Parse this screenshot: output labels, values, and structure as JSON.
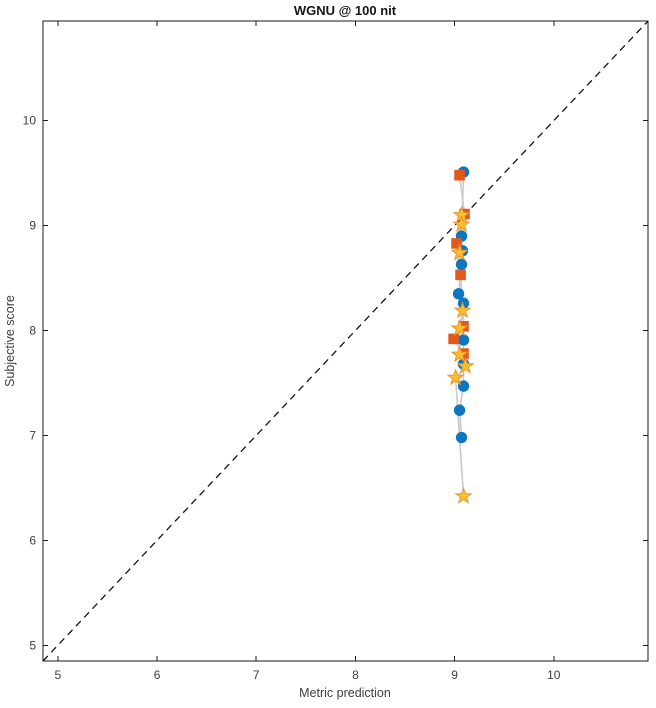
{
  "figure": {
    "title": "WGNU @ 100 nit",
    "xlabel": "Metric prediction",
    "ylabel": "Subjective score"
  },
  "chart_data": {
    "type": "scatter",
    "title": "WGNU @ 100 nit",
    "xlabel": "Metric prediction",
    "ylabel": "Subjective score",
    "xlim": [
      4.85,
      10.95
    ],
    "ylim": [
      4.85,
      10.95
    ],
    "xticks": [
      5,
      6,
      7,
      8,
      9,
      10
    ],
    "yticks": [
      5,
      6,
      7,
      8,
      9,
      10
    ],
    "grid": false,
    "legend": null,
    "background": "#ffffff",
    "axis_color": "#1a1a1a",
    "tick_label_color": "#3d3d3d",
    "identity_line": {
      "from": [
        4.85,
        4.85
      ],
      "to": [
        10.95,
        10.95
      ],
      "style": "dashed",
      "color": "#141414"
    },
    "connector_color": "#c9c9c9",
    "series": [
      {
        "name": "blue-circles",
        "marker": "circle",
        "color": "#0e76be",
        "edge_color": "#0e76be",
        "points": [
          [
            9.09,
            9.51
          ],
          [
            9.07,
            8.9
          ],
          [
            9.08,
            8.76
          ],
          [
            9.07,
            8.63
          ],
          [
            9.04,
            8.35
          ],
          [
            9.09,
            8.26
          ],
          [
            9.09,
            7.91
          ],
          [
            9.09,
            7.68
          ],
          [
            9.09,
            7.47
          ],
          [
            9.05,
            7.24
          ],
          [
            9.07,
            6.98
          ]
        ]
      },
      {
        "name": "orange-squares",
        "marker": "square",
        "color": "#e2591e",
        "edge_color": "#e2591e",
        "points": [
          [
            9.05,
            9.48
          ],
          [
            9.1,
            9.11
          ],
          [
            9.02,
            8.83
          ],
          [
            9.06,
            8.53
          ],
          [
            9.09,
            8.04
          ],
          [
            8.99,
            7.92
          ],
          [
            9.09,
            7.78
          ]
        ]
      },
      {
        "name": "yellow-stars",
        "marker": "star",
        "color": "#fcbf2d",
        "edge_color": "#e8952c",
        "points": [
          [
            9.07,
            9.1
          ],
          [
            9.07,
            9.01
          ],
          [
            9.05,
            8.74
          ],
          [
            9.08,
            8.19
          ],
          [
            9.05,
            8.02
          ],
          [
            9.05,
            7.77
          ],
          [
            9.11,
            7.66
          ],
          [
            9.01,
            7.55
          ],
          [
            9.09,
            6.42
          ]
        ]
      }
    ]
  }
}
